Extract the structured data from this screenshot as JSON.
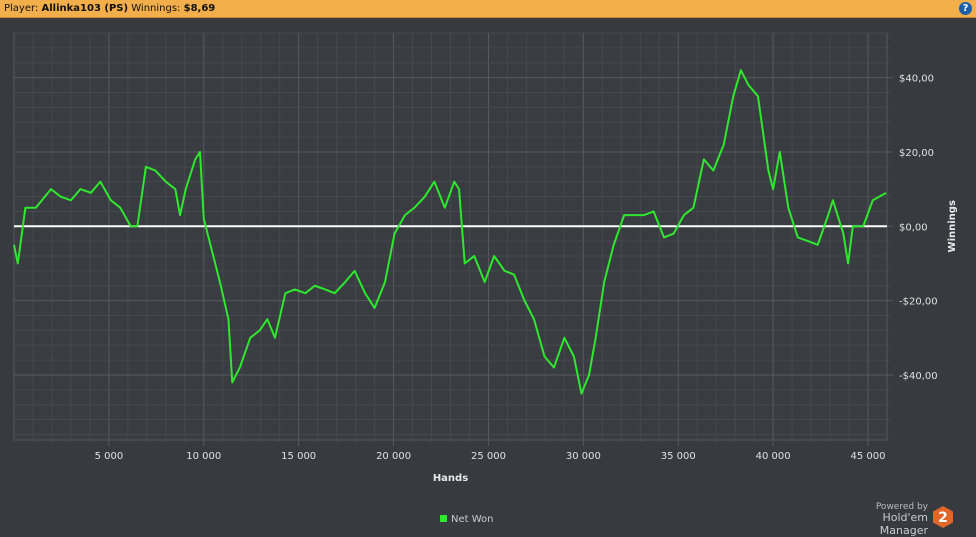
{
  "header": {
    "player_label": "Player:",
    "player": "Allinka103 (PS)",
    "winnings_label": "Winnings:",
    "winnings": "$8,69",
    "help_icon": "question-circle-icon"
  },
  "branding": {
    "powered_by": "Powered by",
    "product": "Hold'em Manager",
    "logo_text": "2"
  },
  "chart_data": {
    "type": "line",
    "xlabel": "Hands",
    "ylabel": "Winnings",
    "xlim": [
      0,
      46000
    ],
    "ylim": [
      -57.5,
      52
    ],
    "grid": true,
    "legend_position": "bottom",
    "x_ticks": [
      5000,
      10000,
      15000,
      20000,
      25000,
      30000,
      35000,
      40000,
      45000
    ],
    "x_tick_labels": [
      "5 000",
      "10 000",
      "15 000",
      "20 000",
      "25 000",
      "30 000",
      "35 000",
      "40 000",
      "45 000"
    ],
    "y_ticks": [
      40,
      20,
      0,
      -20,
      -40
    ],
    "y_tick_labels": [
      "$40,00",
      "$20,00",
      "$0,00",
      "-$20,00",
      "-$40,00"
    ],
    "zero_line_color": "#ffffff",
    "series": [
      {
        "name": "Net Won",
        "color": "#2ee82e",
        "x": [
          0,
          200,
          600,
          1150,
          1950,
          2450,
          3000,
          3500,
          4050,
          4550,
          5100,
          5600,
          6150,
          6500,
          6950,
          7450,
          8000,
          8500,
          8750,
          9050,
          9550,
          9800,
          10000,
          10350,
          10850,
          11300,
          11500,
          11900,
          12450,
          12950,
          13350,
          13750,
          14300,
          14800,
          15350,
          15850,
          16400,
          16900,
          17450,
          17950,
          18500,
          19000,
          19550,
          20050,
          20600,
          21100,
          21650,
          22150,
          22700,
          23200,
          23450,
          23750,
          24250,
          24800,
          25300,
          25850,
          26350,
          26900,
          27400,
          27950,
          28450,
          29000,
          29500,
          29900,
          30300,
          30650,
          31100,
          31600,
          32150,
          32650,
          33200,
          33700,
          34250,
          34750,
          35300,
          35800,
          36350,
          36850,
          37400,
          37900,
          38300,
          38700,
          39200,
          39750,
          40000,
          40350,
          40800,
          41300,
          41850,
          42350,
          42900,
          43150,
          43700,
          43950,
          44200,
          44750,
          45250,
          45950
        ],
        "y": [
          -5,
          -10,
          5,
          5,
          10,
          8,
          7,
          10,
          9,
          12,
          7,
          5,
          0,
          0,
          16,
          15,
          12,
          10,
          3,
          10,
          18,
          20,
          2,
          -5,
          -15,
          -25,
          -42,
          -38,
          -30,
          -28,
          -25,
          -30,
          -18,
          -17,
          -18,
          -16,
          -17,
          -18,
          -15,
          -12,
          -18,
          -22,
          -15,
          -2,
          3,
          5,
          8,
          12,
          5,
          12,
          10,
          -10,
          -8,
          -15,
          -8,
          -12,
          -13,
          -20,
          -25,
          -35,
          -38,
          -30,
          -35,
          -45,
          -40,
          -30,
          -15,
          -5,
          3,
          3,
          3,
          4,
          -3,
          -2,
          3,
          5,
          18,
          15,
          22,
          35,
          42,
          38,
          35,
          15,
          10,
          20,
          5,
          -3,
          -4,
          -5,
          3,
          7,
          -2,
          -10,
          0,
          0,
          7,
          9
        ]
      }
    ]
  }
}
